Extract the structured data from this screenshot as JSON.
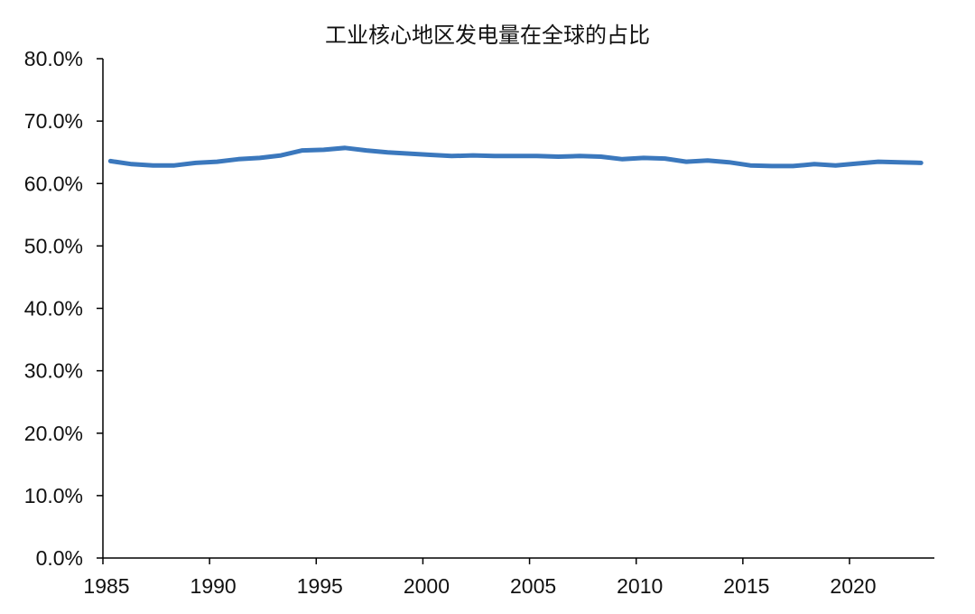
{
  "chart_data": {
    "type": "line",
    "title": "工业核心地区发电量在全球的占比",
    "xlabel": "",
    "ylabel": "",
    "x": [
      1985,
      1986,
      1987,
      1988,
      1989,
      1990,
      1991,
      1992,
      1993,
      1994,
      1995,
      1996,
      1997,
      1998,
      1999,
      2000,
      2001,
      2002,
      2003,
      2004,
      2005,
      2006,
      2007,
      2008,
      2009,
      2010,
      2011,
      2012,
      2013,
      2014,
      2015,
      2016,
      2017,
      2018,
      2019,
      2020,
      2021,
      2022,
      2023
    ],
    "series": [
      {
        "values": [
          63.6,
          63.1,
          62.9,
          62.9,
          63.3,
          63.5,
          63.9,
          64.1,
          64.5,
          65.3,
          65.4,
          65.7,
          65.3,
          65.0,
          64.8,
          64.6,
          64.4,
          64.5,
          64.4,
          64.4,
          64.4,
          64.3,
          64.4,
          64.3,
          63.9,
          64.1,
          64.0,
          63.5,
          63.7,
          63.4,
          62.9,
          62.8,
          62.8,
          63.1,
          62.9,
          63.2,
          63.5,
          63.4,
          63.3
        ]
      }
    ],
    "xlim": [
      1985,
      2024
    ],
    "ylim": [
      0,
      80
    ],
    "x_ticks": [
      1985,
      1990,
      1995,
      2000,
      2005,
      2010,
      2015,
      2020
    ],
    "x_tick_labels": [
      "1985",
      "1990",
      "1995",
      "2000",
      "2005",
      "2010",
      "2015",
      "2020"
    ],
    "y_ticks": [
      0,
      10,
      20,
      30,
      40,
      50,
      60,
      70,
      80
    ],
    "y_tick_labels": [
      "0.0%",
      "10.0%",
      "20.0%",
      "30.0%",
      "40.0%",
      "50.0%",
      "60.0%",
      "70.0%",
      "80.0%"
    ],
    "grid": false,
    "legend": "none",
    "colors": {
      "series": "#3b78bd",
      "axis": "#000000",
      "text": "#111111"
    }
  }
}
